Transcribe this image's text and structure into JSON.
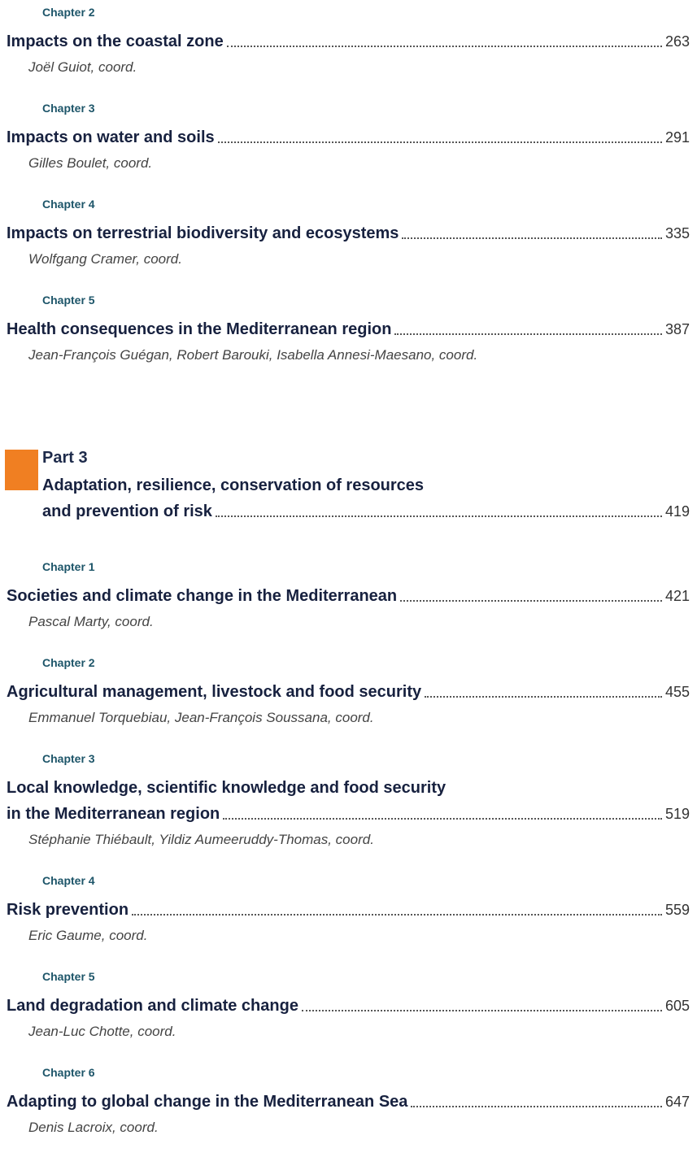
{
  "chapters": [
    {
      "chapter": "Chapter 2",
      "title": [
        "Impacts on the coastal zone"
      ],
      "page": "263",
      "author": "Joël Guiot, coord."
    },
    {
      "chapter": "Chapter 3",
      "title": [
        "Impacts on water and soils"
      ],
      "page": "291",
      "author": "Gilles Boulet, coord."
    },
    {
      "chapter": "Chapter 4",
      "title": [
        "Impacts on terrestrial biodiversity and ecosystems"
      ],
      "page": "335",
      "author": "Wolfgang Cramer, coord."
    },
    {
      "chapter": "Chapter 5",
      "title": [
        "Health consequences in the Mediterranean region"
      ],
      "page": "387",
      "author": "Jean-François Guégan, Robert Barouki, Isabella Annesi-Maesano, coord."
    }
  ],
  "part": {
    "label": "Part 3",
    "title": [
      "Adaptation, resilience, conservation of resources",
      "and prevention of risk"
    ],
    "page": "419",
    "chapters": [
      {
        "chapter": "Chapter 1",
        "title": [
          "Societies and climate change in the Mediterranean"
        ],
        "page": "421",
        "author": "Pascal Marty, coord."
      },
      {
        "chapter": "Chapter 2",
        "title": [
          "Agricultural management, livestock and food security"
        ],
        "page": "455",
        "author": "Emmanuel Torquebiau, Jean-François Soussana, coord."
      },
      {
        "chapter": "Chapter 3",
        "title": [
          "Local knowledge, scientific knowledge and food security",
          "in the Mediterranean region"
        ],
        "page": "519",
        "author": "Stéphanie Thiébault, Yildiz Aumeeruddy-Thomas, coord."
      },
      {
        "chapter": "Chapter 4",
        "title": [
          "Risk prevention"
        ],
        "page": "559",
        "author": "Eric Gaume, coord."
      },
      {
        "chapter": "Chapter 5",
        "title": [
          "Land degradation and climate change"
        ],
        "page": "605",
        "author": "Jean-Luc Chotte, coord."
      },
      {
        "chapter": "Chapter 6",
        "title": [
          "Adapting to global change in the Mediterranean Sea"
        ],
        "page": "647",
        "author": "Denis Lacroix, coord."
      }
    ]
  }
}
